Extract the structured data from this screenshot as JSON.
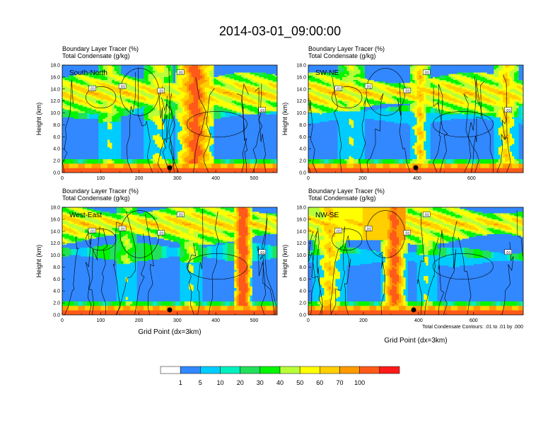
{
  "chart_data": {
    "type": "heatmap",
    "title": "2014-03-01_09:00:00",
    "panel_titles": [
      "Boundary Layer Tracer   (%)",
      "Total Condensate   (g/kg)"
    ],
    "ylabel": "Height (km)",
    "xlabel": "Grid Point (dx=3km)",
    "ylim": [
      0,
      18
    ],
    "yticks": [
      "0.0",
      "2.0",
      "4.0",
      "6.0",
      "8.0",
      "10.0",
      "12.0",
      "14.0",
      "16.0",
      "18.0"
    ],
    "contour_note": "Total Condensate Contours: .01 to .01 by .000",
    "contour_label": ".01",
    "panels": [
      {
        "name": "South-North",
        "xlim": [
          0,
          560
        ],
        "xticks": [
          "0",
          "100",
          "200",
          "300",
          "400",
          "500"
        ]
      },
      {
        "name": "SW-NE",
        "xlim": [
          0,
          790
        ],
        "xticks": [
          "0",
          "200",
          "400",
          "600"
        ]
      },
      {
        "name": "West-East",
        "xlim": [
          0,
          560
        ],
        "xticks": [
          "0",
          "100",
          "200",
          "300",
          "400",
          "500"
        ]
      },
      {
        "name": "NW-SE",
        "xlim": [
          0,
          780
        ],
        "xticks": [
          "0",
          "200",
          "400",
          "600"
        ]
      }
    ],
    "colorbar": {
      "labels": [
        "1",
        "5",
        "10",
        "20",
        "30",
        "40",
        "50",
        "60",
        "70",
        "100"
      ],
      "colors": [
        "#ffffff",
        "#3288ff",
        "#00ccff",
        "#00f0c0",
        "#22e05a",
        "#00f500",
        "#b8ff3a",
        "#ffff00",
        "#ffcf00",
        "#ff9a00",
        "#ff5a1a",
        "#ff1a1a"
      ]
    }
  }
}
